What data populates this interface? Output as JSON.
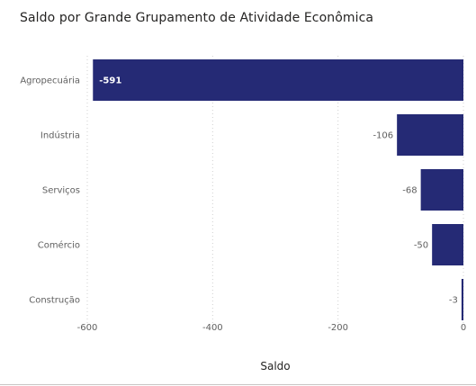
{
  "chart_data": {
    "type": "bar",
    "orientation": "horizontal",
    "title": "Saldo por Grande Grupamento de Atividade Econômica",
    "xlabel": "Saldo",
    "ylabel": "",
    "categories": [
      "Agropecuária",
      "Indústria",
      "Serviços",
      "Comércio",
      "Construção"
    ],
    "values": [
      -591,
      -106,
      -68,
      -50,
      -3
    ],
    "data_labels": [
      "-591",
      "-106",
      "-68",
      "-50",
      "-3"
    ],
    "xlim": [
      -600,
      0
    ],
    "x_ticks": [
      -600,
      -400,
      -200,
      0
    ],
    "x_tick_labels": [
      "-600",
      "-400",
      "-200",
      "0"
    ],
    "grid": "vertical dotted",
    "bar_color": "#252A75",
    "label_inside_color": "#ffffff",
    "label_outside_color": "#5f5f5f"
  }
}
